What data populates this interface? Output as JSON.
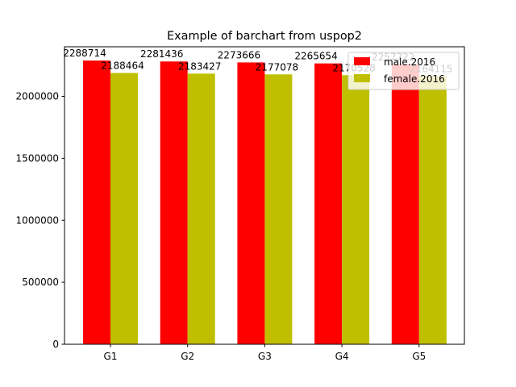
{
  "chart_data": {
    "type": "bar",
    "title": "Example of barchart from uspop2",
    "xlabel": "",
    "ylabel": "",
    "categories": [
      "G1",
      "G2",
      "G3",
      "G4",
      "G5"
    ],
    "series": [
      {
        "name": "male.2016",
        "color": "#ff0000",
        "values": [
          2288714,
          2281436,
          2273666,
          2265654,
          2257722
        ]
      },
      {
        "name": "female.2016",
        "color": "#bfbf00",
        "values": [
          2188464,
          2183427,
          2177078,
          2170528,
          2164115
        ]
      }
    ],
    "ylim": [
      0,
      2400000
    ],
    "yticks": [
      0,
      500000,
      1000000,
      1500000,
      2000000
    ],
    "grid": false,
    "legend_position": "top-right",
    "data_labels": true
  }
}
